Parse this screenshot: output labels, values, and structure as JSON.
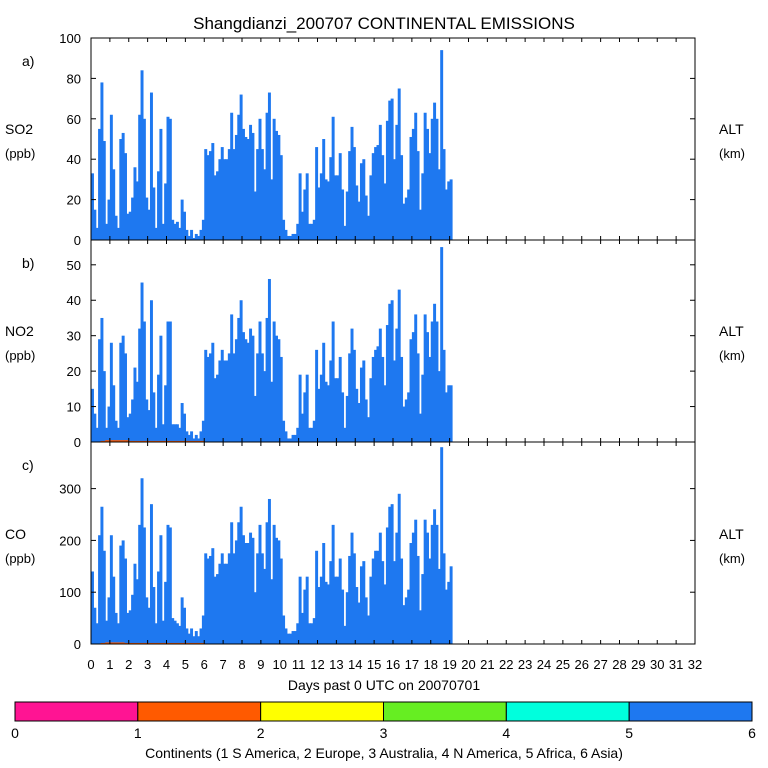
{
  "chart_data": {
    "title": "Shangdianzi_200707 CONTINENTAL EMISSIONS",
    "type": "bar",
    "x": {
      "label": "Days past 0 UTC on 20070701",
      "range": [
        0,
        32
      ],
      "ticks": [
        "0",
        "1",
        "2",
        "3",
        "4",
        "5",
        "6",
        "7",
        "8",
        "9",
        "10",
        "11",
        "12",
        "13",
        "14",
        "15",
        "16",
        "17",
        "18",
        "19",
        "20",
        "21",
        "22",
        "23",
        "24",
        "25",
        "26",
        "27",
        "28",
        "29",
        "30",
        "31",
        "32"
      ],
      "bins_per_day": 8
    },
    "right_axis": {
      "label_line1": "ALT",
      "label_line2": "(km)"
    },
    "panels": [
      {
        "id": "a)",
        "label_line1": "SO2",
        "label_line2": "(ppb)",
        "ylim": [
          0,
          100
        ],
        "yticks": [
          "0",
          "20",
          "40",
          "60",
          "80",
          "100"
        ],
        "series": [
          {
            "continent": 6,
            "name": "Asia",
            "color": "#1e78f0",
            "values": [
              33,
              15,
              6,
              55,
              78,
              49,
              8,
              20,
              62,
              35,
              12,
              6,
              50,
              53,
              43,
              13,
              14,
              21,
              36,
              29,
              62,
              84,
              60,
              21,
              15,
              73,
              26,
              6,
              34,
              55,
              8,
              28,
              61,
              60,
              10,
              8,
              9,
              6,
              20,
              14,
              5,
              2,
              5,
              1,
              3,
              2,
              5,
              10,
              45,
              42,
              44,
              48,
              32,
              34,
              40,
              46,
              40,
              40,
              45,
              63,
              45,
              52,
              62,
              72,
              55,
              51,
              50,
              57,
              53,
              24,
              45,
              60,
              45,
              35,
              63,
              73,
              30,
              60,
              54,
              52,
              42,
              10,
              5,
              2,
              2,
              3,
              3,
              8,
              33,
              14,
              25,
              33,
              8,
              8,
              10,
              46,
              26,
              33,
              50,
              30,
              29,
              41,
              61,
              32,
              32,
              43,
              25,
              7,
              24,
              44,
              56,
              46,
              27,
              19,
              38,
              40,
              22,
              12,
              32,
              43,
              46,
              47,
              57,
              42,
              28,
              59,
              69,
              70,
              40,
              57,
              75,
              42,
              18,
              21,
              25,
              51,
              55,
              63,
              44,
              15,
              33,
              63,
              55,
              43,
              60,
              68,
              60,
              35,
              94,
              45,
              25,
              29,
              30
            ]
          },
          {
            "continent": 2,
            "name": "Europe",
            "color": "#ff5a00",
            "values": [
              0,
              0,
              0,
              0,
              0,
              0,
              0,
              0,
              0,
              0,
              0,
              0,
              0,
              0,
              0,
              0,
              0,
              0,
              0,
              0,
              0,
              0,
              0,
              0,
              0,
              0,
              0,
              0,
              0,
              0,
              0,
              0,
              0,
              0,
              0,
              0,
              0,
              0,
              0,
              0,
              0,
              0,
              0,
              0,
              0,
              0,
              0,
              0,
              0,
              0,
              0,
              0,
              0,
              0,
              0,
              0,
              0,
              0,
              0,
              0,
              0,
              0,
              0,
              0,
              0,
              0,
              0,
              0,
              0,
              0,
              0,
              0,
              0,
              0,
              0,
              0,
              0,
              0,
              0,
              0,
              0,
              0,
              0,
              0,
              0,
              0,
              0,
              0,
              0,
              0,
              0,
              0,
              0,
              0,
              0,
              0,
              0,
              0,
              0,
              0,
              0,
              0,
              0,
              0,
              0,
              0,
              0,
              0,
              0,
              0,
              0,
              0,
              0,
              0,
              0,
              0,
              0,
              0,
              0,
              0,
              0,
              0,
              0,
              0,
              0,
              0,
              0,
              0,
              0,
              0,
              0,
              0,
              0,
              0,
              0,
              0,
              0,
              0,
              0,
              0,
              0,
              0,
              0,
              0,
              0,
              0,
              0,
              0,
              0,
              0,
              0,
              0,
              0
            ]
          }
        ]
      },
      {
        "id": "b)",
        "label_line1": "NO2",
        "label_line2": "(ppb)",
        "ylim": [
          0,
          57
        ],
        "yticks": [
          "0",
          "10",
          "20",
          "30",
          "40",
          "50"
        ],
        "series": [
          {
            "continent": 6,
            "name": "Asia",
            "color": "#1e78f0",
            "values": [
              15,
              8,
              4,
              29,
              35,
              20,
              4,
              10,
              28,
              16,
              6,
              4,
              28,
              30,
              25,
              7,
              8,
              12,
              21,
              17,
              32,
              45,
              34,
              12,
              9,
              40,
              14,
              4,
              19,
              30,
              5,
              16,
              34,
              34,
              5,
              5,
              5,
              4,
              11,
              8,
              3,
              2,
              3,
              1,
              2,
              1,
              3,
              6,
              26,
              24,
              25,
              28,
              18,
              19,
              23,
              26,
              23,
              23,
              25,
              36,
              25,
              29,
              35,
              40,
              31,
              29,
              28,
              32,
              30,
              13,
              25,
              34,
              25,
              20,
              35,
              46,
              17,
              34,
              30,
              29,
              24,
              6,
              3,
              1,
              1,
              2,
              2,
              4,
              19,
              8,
              14,
              19,
              4,
              4,
              6,
              26,
              15,
              19,
              28,
              17,
              16,
              23,
              34,
              18,
              18,
              24,
              14,
              4,
              13,
              25,
              32,
              26,
              15,
              11,
              21,
              23,
              12,
              7,
              18,
              24,
              26,
              27,
              32,
              24,
              16,
              33,
              39,
              40,
              23,
              32,
              43,
              24,
              10,
              12,
              14,
              29,
              31,
              36,
              25,
              8,
              19,
              36,
              31,
              24,
              34,
              39,
              34,
              20,
              55,
              26,
              14,
              16,
              16
            ]
          },
          {
            "continent": 2,
            "name": "Europe",
            "color": "#ff5a00",
            "values": [
              0,
              0,
              0,
              0,
              0.3,
              0.3,
              0.5,
              0.5,
              0.5,
              0.5,
              0.5,
              0.5,
              0.5,
              0.5,
              0.5,
              0.5,
              0.3,
              0.3,
              0.3,
              0.3,
              0.3,
              0.3,
              0.3,
              0.3,
              0.3,
              0.3,
              0.3,
              0.3,
              0.3,
              0.3,
              0.3,
              0.3,
              0.3,
              0.3,
              0.3,
              0.3,
              0.3,
              0.3,
              0.3,
              0.3,
              0.3,
              0.3,
              0.3,
              0.3,
              0.3,
              0.3,
              0.3,
              0.3,
              0,
              0,
              0,
              0,
              0,
              0,
              0,
              0,
              0,
              0,
              0,
              0,
              0,
              0,
              0,
              0,
              0,
              0,
              0,
              0,
              0,
              0,
              0,
              0,
              0,
              0,
              0,
              0,
              0,
              0,
              0,
              0,
              0,
              0,
              0,
              0,
              0,
              0,
              0,
              0,
              0,
              0,
              0,
              0,
              0,
              0,
              0,
              0,
              0,
              0,
              0,
              0,
              0,
              0,
              0,
              0,
              0,
              0,
              0,
              0,
              0,
              0,
              0,
              0,
              0,
              0,
              0,
              0,
              0,
              0,
              0,
              0,
              0,
              0,
              0,
              0,
              0,
              0,
              0,
              0,
              0,
              0,
              0,
              0,
              0,
              0,
              0,
              0,
              0,
              0,
              0,
              0,
              0,
              0,
              0,
              0,
              0,
              0,
              0,
              0,
              0,
              0,
              0,
              0,
              0,
              0,
              0,
              0,
              0,
              0,
              0,
              0,
              0,
              0
            ]
          }
        ]
      },
      {
        "id": "c)",
        "label_line1": "CO",
        "label_line2": "(ppb)",
        "ylim": [
          0,
          390
        ],
        "yticks": [
          "0",
          "100",
          "200",
          "300"
        ],
        "series": [
          {
            "continent": 6,
            "name": "Asia",
            "color": "#1e78f0",
            "values": [
              140,
              70,
              40,
              210,
              265,
              180,
              45,
              90,
              210,
              130,
              60,
              40,
              190,
              200,
              165,
              60,
              65,
              95,
              155,
              125,
              230,
              320,
              225,
              90,
              70,
              270,
              110,
              40,
              140,
              210,
              45,
              120,
              230,
              225,
              50,
              45,
              40,
              35,
              90,
              70,
              30,
              20,
              30,
              15,
              25,
              15,
              30,
              55,
              175,
              165,
              170,
              185,
              130,
              135,
              155,
              175,
              155,
              155,
              175,
              235,
              175,
              200,
              235,
              265,
              210,
              195,
              195,
              215,
              205,
              100,
              175,
              230,
              175,
              145,
              235,
              280,
              125,
              230,
              205,
              200,
              165,
              55,
              30,
              20,
              20,
              25,
              25,
              40,
              130,
              60,
              105,
              130,
              40,
              40,
              50,
              180,
              110,
              130,
              195,
              120,
              115,
              160,
              230,
              130,
              130,
              165,
              105,
              35,
              100,
              170,
              215,
              175,
              110,
              80,
              150,
              160,
              90,
              55,
              130,
              165,
              180,
              180,
              215,
              160,
              115,
              225,
              265,
              270,
              160,
              215,
              290,
              165,
              75,
              90,
              105,
              195,
              215,
              240,
              170,
              65,
              135,
              240,
              215,
              165,
              230,
              260,
              230,
              145,
              380,
              175,
              105,
              120,
              150
            ]
          },
          {
            "continent": 2,
            "name": "Europe",
            "color": "#ff5a00",
            "values": [
              0,
              0,
              0,
              0,
              2,
              2,
              3,
              3,
              3,
              3,
              3,
              3,
              3,
              3,
              2,
              2,
              2,
              2,
              2,
              2,
              2,
              2,
              2,
              2,
              2,
              2,
              2,
              2,
              2,
              2,
              2,
              2,
              2,
              2,
              2,
              2,
              2,
              2,
              2,
              2,
              2,
              2,
              2,
              2,
              2,
              2,
              2,
              2,
              0,
              0,
              0,
              0,
              0,
              0,
              0,
              0,
              0,
              0,
              0,
              0,
              0,
              0,
              0,
              0,
              0,
              0,
              0,
              0,
              0,
              0,
              0,
              0,
              0,
              0,
              0,
              0,
              0,
              0,
              0,
              0,
              0,
              0,
              0,
              0,
              0,
              0,
              0,
              0,
              0,
              0,
              0,
              0,
              0,
              0,
              0,
              0,
              0,
              0,
              0,
              0,
              0,
              0,
              0,
              0,
              0,
              0,
              0,
              0,
              0,
              0,
              0,
              0,
              0,
              0,
              0,
              0,
              0,
              0,
              0,
              0,
              0,
              0,
              0,
              0,
              0,
              0,
              0,
              0,
              0,
              0,
              0,
              0,
              0,
              0,
              0,
              0,
              0,
              0,
              0,
              0,
              0,
              0,
              0,
              0,
              0,
              0,
              0,
              0,
              0,
              0,
              0,
              0,
              0,
              0
            ]
          }
        ]
      }
    ],
    "legend": {
      "title": "Continents (1 S America, 2 Europe, 3 Australia, 4 N America, 5 Africa, 6 Asia)",
      "ticks": [
        "0",
        "1",
        "2",
        "3",
        "4",
        "5",
        "6"
      ],
      "colors": [
        "#ff1493",
        "#ff5a00",
        "#ffff00",
        "#66ee22",
        "#00ffdd",
        "#1e78f0"
      ]
    }
  }
}
